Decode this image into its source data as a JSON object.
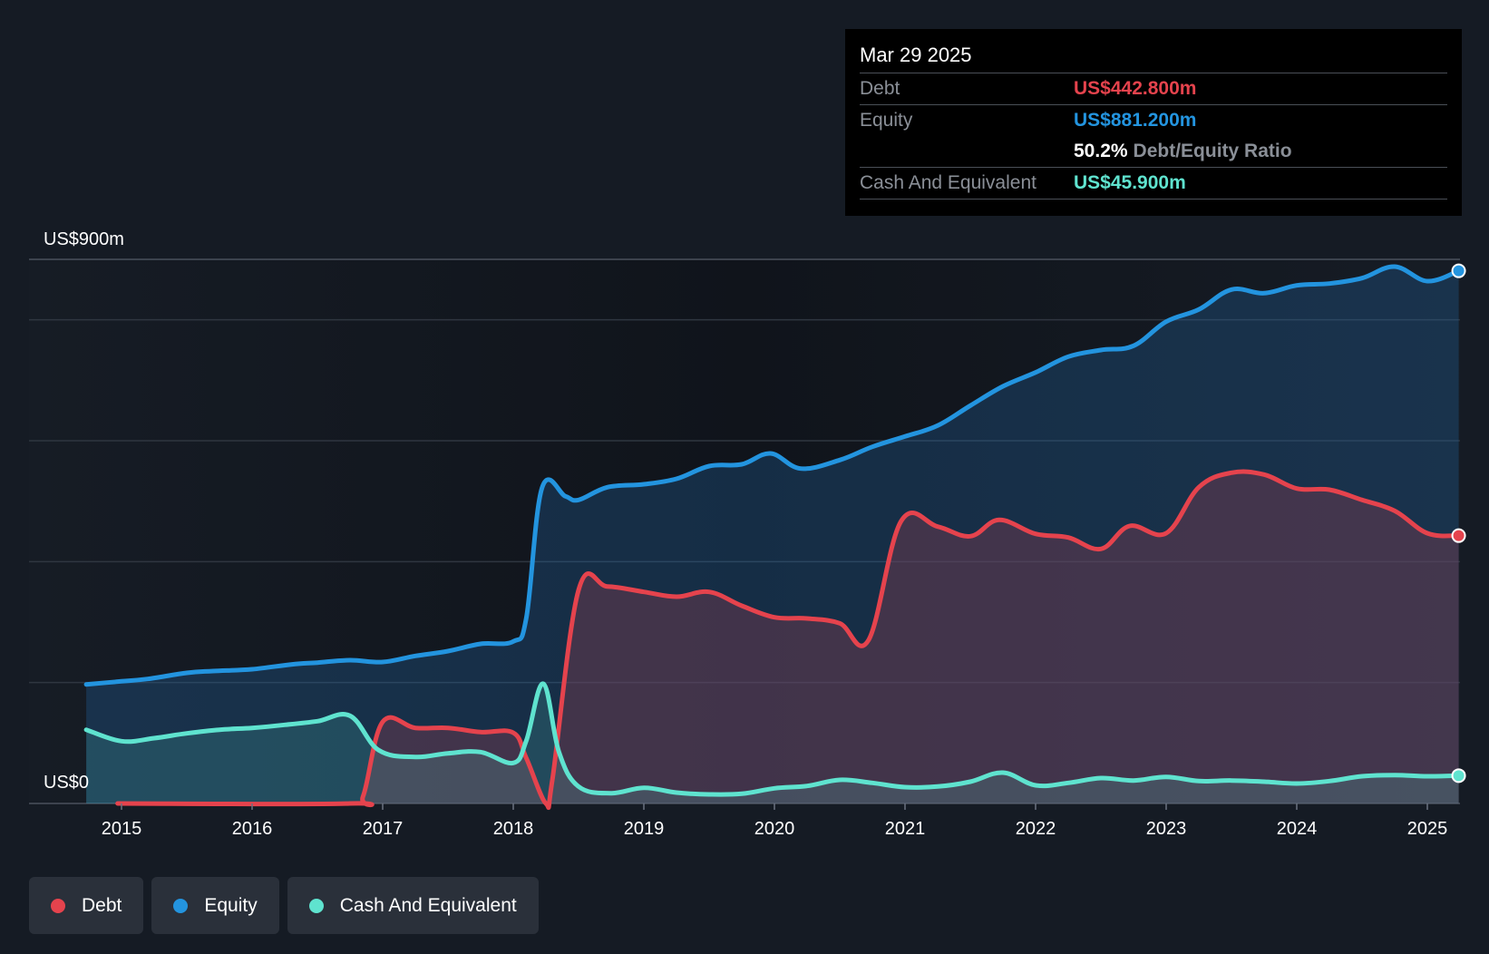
{
  "tooltip": {
    "date": "Mar 29 2025",
    "debt_label": "Debt",
    "debt_value": "US$442.800m",
    "equity_label": "Equity",
    "equity_value": "US$881.200m",
    "ratio_value": "50.2%",
    "ratio_label": "Debt/Equity Ratio",
    "cash_label": "Cash And Equivalent",
    "cash_value": "US$45.900m"
  },
  "legend": [
    {
      "label": "Debt",
      "color": "#e5434d"
    },
    {
      "label": "Equity",
      "color": "#2394df"
    },
    {
      "label": "Cash And Equivalent",
      "color": "#5fe3cf"
    }
  ],
  "colors": {
    "background": "#151b24",
    "debt": "#e5434d",
    "equity": "#2394df",
    "cash": "#5fe3cf"
  },
  "chart_data": {
    "type": "area",
    "y_top_label": "US$900m",
    "y_bottom_label": "US$0",
    "ylim": [
      0,
      900
    ],
    "grid": true,
    "legend_position": "bottom-left",
    "x_ticks": [
      "2015",
      "2016",
      "2017",
      "2018",
      "2019",
      "2020",
      "2021",
      "2022",
      "2023",
      "2024",
      "2025"
    ],
    "series": [
      {
        "name": "Equity",
        "color": "#2394df",
        "points": [
          [
            2014.73,
            197
          ],
          [
            2015.0,
            202
          ],
          [
            2015.2,
            206
          ],
          [
            2015.5,
            216
          ],
          [
            2015.7,
            219
          ],
          [
            2016.0,
            222
          ],
          [
            2016.3,
            230
          ],
          [
            2016.5,
            233
          ],
          [
            2016.75,
            237
          ],
          [
            2017.0,
            234
          ],
          [
            2017.25,
            244
          ],
          [
            2017.5,
            252
          ],
          [
            2017.75,
            264
          ],
          [
            2018.0,
            268
          ],
          [
            2018.1,
            307
          ],
          [
            2018.22,
            522
          ],
          [
            2018.4,
            508
          ],
          [
            2018.5,
            502
          ],
          [
            2018.72,
            523
          ],
          [
            2019.0,
            528
          ],
          [
            2019.25,
            537
          ],
          [
            2019.5,
            558
          ],
          [
            2019.75,
            561
          ],
          [
            2019.97,
            579
          ],
          [
            2020.2,
            554
          ],
          [
            2020.5,
            568
          ],
          [
            2020.75,
            590
          ],
          [
            2021.0,
            607
          ],
          [
            2021.25,
            625
          ],
          [
            2021.5,
            658
          ],
          [
            2021.75,
            690
          ],
          [
            2022.0,
            713
          ],
          [
            2022.25,
            739
          ],
          [
            2022.5,
            750
          ],
          [
            2022.75,
            757
          ],
          [
            2023.0,
            797
          ],
          [
            2023.25,
            817
          ],
          [
            2023.5,
            850
          ],
          [
            2023.75,
            844
          ],
          [
            2024.0,
            857
          ],
          [
            2024.25,
            860
          ],
          [
            2024.5,
            869
          ],
          [
            2024.75,
            888
          ],
          [
            2025.0,
            864
          ],
          [
            2025.24,
            881
          ]
        ]
      },
      {
        "name": "Debt",
        "color": "#e5434d",
        "points": [
          [
            2014.97,
            0
          ],
          [
            2016.75,
            0
          ],
          [
            2016.85,
            12
          ],
          [
            2017.0,
            135
          ],
          [
            2017.25,
            125
          ],
          [
            2017.5,
            125
          ],
          [
            2017.75,
            118
          ],
          [
            2018.0,
            117
          ],
          [
            2018.1,
            75
          ],
          [
            2018.25,
            0
          ],
          [
            2018.3,
            40
          ],
          [
            2018.5,
            353
          ],
          [
            2018.72,
            359
          ],
          [
            2019.0,
            350
          ],
          [
            2019.25,
            342
          ],
          [
            2019.5,
            350
          ],
          [
            2019.75,
            327
          ],
          [
            2020.0,
            308
          ],
          [
            2020.25,
            306
          ],
          [
            2020.5,
            298
          ],
          [
            2020.72,
            270
          ],
          [
            2020.97,
            467
          ],
          [
            2021.25,
            458
          ],
          [
            2021.5,
            442
          ],
          [
            2021.72,
            469
          ],
          [
            2022.0,
            446
          ],
          [
            2022.25,
            440
          ],
          [
            2022.5,
            421
          ],
          [
            2022.72,
            459
          ],
          [
            2023.0,
            447
          ],
          [
            2023.25,
            523
          ],
          [
            2023.5,
            547
          ],
          [
            2023.75,
            544
          ],
          [
            2024.0,
            521
          ],
          [
            2024.25,
            519
          ],
          [
            2024.5,
            502
          ],
          [
            2024.75,
            484
          ],
          [
            2025.0,
            447
          ],
          [
            2025.24,
            443
          ]
        ]
      },
      {
        "name": "Cash And Equivalent",
        "color": "#5fe3cf",
        "points": [
          [
            2014.73,
            122
          ],
          [
            2015.0,
            103
          ],
          [
            2015.25,
            108
          ],
          [
            2015.5,
            116
          ],
          [
            2015.75,
            122
          ],
          [
            2016.0,
            125
          ],
          [
            2016.25,
            130
          ],
          [
            2016.5,
            136
          ],
          [
            2016.75,
            145
          ],
          [
            2016.97,
            88
          ],
          [
            2017.25,
            77
          ],
          [
            2017.5,
            83
          ],
          [
            2017.75,
            85
          ],
          [
            2018.0,
            67
          ],
          [
            2018.1,
            104
          ],
          [
            2018.23,
            198
          ],
          [
            2018.35,
            85
          ],
          [
            2018.5,
            28
          ],
          [
            2018.75,
            17
          ],
          [
            2019.0,
            26
          ],
          [
            2019.25,
            18
          ],
          [
            2019.5,
            15
          ],
          [
            2019.75,
            16
          ],
          [
            2020.0,
            25
          ],
          [
            2020.25,
            29
          ],
          [
            2020.5,
            39
          ],
          [
            2020.75,
            34
          ],
          [
            2021.0,
            27
          ],
          [
            2021.25,
            28
          ],
          [
            2021.5,
            36
          ],
          [
            2021.75,
            51
          ],
          [
            2022.0,
            30
          ],
          [
            2022.25,
            34
          ],
          [
            2022.5,
            42
          ],
          [
            2022.75,
            38
          ],
          [
            2023.0,
            44
          ],
          [
            2023.25,
            37
          ],
          [
            2023.5,
            38
          ],
          [
            2023.75,
            36
          ],
          [
            2024.0,
            33
          ],
          [
            2024.25,
            37
          ],
          [
            2024.5,
            45
          ],
          [
            2024.75,
            47
          ],
          [
            2025.0,
            45
          ],
          [
            2025.24,
            46
          ]
        ]
      }
    ]
  }
}
